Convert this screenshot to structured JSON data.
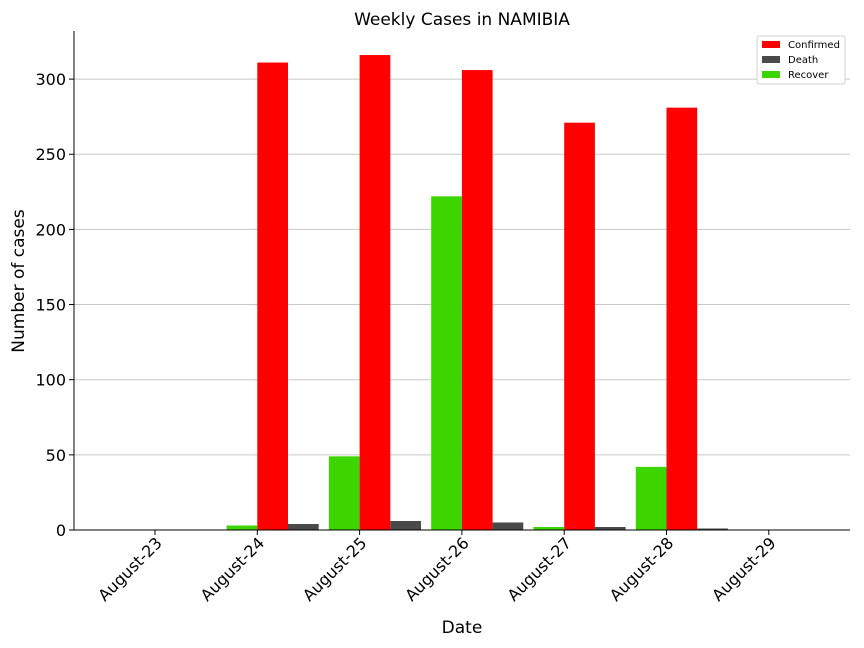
{
  "chart_data": {
    "type": "bar",
    "title": "Weekly Cases in NAMIBIA",
    "xlabel": "Date",
    "ylabel": "Number of cases",
    "categories": [
      "August-23",
      "August-24",
      "August-25",
      "August-26",
      "August-27",
      "August-28",
      "August-29"
    ],
    "series": [
      {
        "name": "Recover",
        "color": "#3dd500",
        "values": [
          0,
          3,
          49,
          222,
          2,
          42,
          0
        ]
      },
      {
        "name": "Confirmed",
        "color": "#ff0000",
        "values": [
          0,
          311,
          316,
          306,
          271,
          281,
          0
        ]
      },
      {
        "name": "Death",
        "color": "#4a4a4a",
        "values": [
          0,
          4,
          6,
          5,
          2,
          1,
          0
        ]
      }
    ],
    "legend_order": [
      "Confirmed",
      "Death",
      "Recover"
    ],
    "ylim": [
      0,
      332
    ],
    "yticks": [
      0,
      50,
      100,
      150,
      200,
      250,
      300
    ],
    "grid": "horizontal",
    "legend_position": "top-right"
  }
}
